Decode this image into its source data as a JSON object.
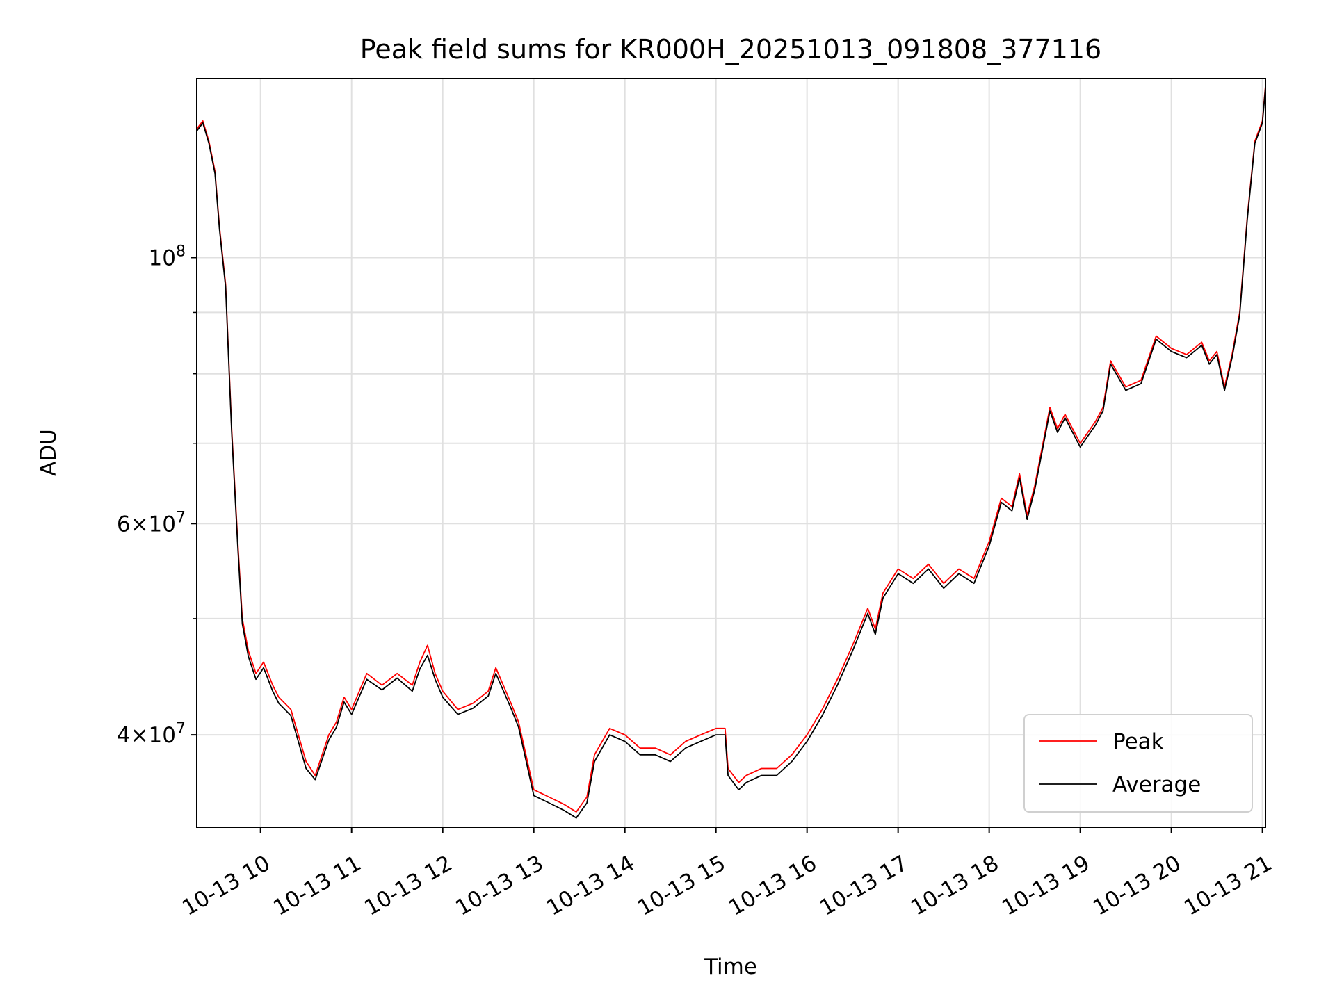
{
  "chart_data": {
    "type": "line",
    "title": "Peak field sums for KR000H_20251013_091808_377116",
    "xlabel": "Time",
    "ylabel": "ADU",
    "y_scale": "log",
    "ylim": [
      33500000,
      141000000
    ],
    "xlim": [
      "2025-10-13 09:18",
      "2025-10-13 21:02"
    ],
    "x_ticks": [
      {
        "time": "2025-10-13 10:00",
        "label": "10-13 10"
      },
      {
        "time": "2025-10-13 11:00",
        "label": "10-13 11"
      },
      {
        "time": "2025-10-13 12:00",
        "label": "10-13 12"
      },
      {
        "time": "2025-10-13 13:00",
        "label": "10-13 13"
      },
      {
        "time": "2025-10-13 14:00",
        "label": "10-13 14"
      },
      {
        "time": "2025-10-13 15:00",
        "label": "10-13 15"
      },
      {
        "time": "2025-10-13 16:00",
        "label": "10-13 16"
      },
      {
        "time": "2025-10-13 17:00",
        "label": "10-13 17"
      },
      {
        "time": "2025-10-13 18:00",
        "label": "10-13 18"
      },
      {
        "time": "2025-10-13 19:00",
        "label": "10-13 19"
      },
      {
        "time": "2025-10-13 20:00",
        "label": "10-13 20"
      },
      {
        "time": "2025-10-13 21:00",
        "label": "10-13 21"
      }
    ],
    "y_major_ticks": [
      {
        "value": 40000000,
        "label_base": "4×10",
        "label_exp": "7"
      },
      {
        "value": 60000000,
        "label_base": "6×10",
        "label_exp": "7"
      },
      {
        "value": 100000000,
        "label_base": "10",
        "label_exp": "8"
      }
    ],
    "y_minor_ticks": [
      50000000,
      70000000,
      80000000,
      90000000
    ],
    "grid": true,
    "legend_position": "lower-right",
    "series": [
      {
        "name": "Peak",
        "color": "#ff0000",
        "x": [
          "2025-10-13 09:18",
          "2025-10-13 09:22",
          "2025-10-13 09:26",
          "2025-10-13 09:30",
          "2025-10-13 09:33",
          "2025-10-13 09:37",
          "2025-10-13 09:41",
          "2025-10-13 09:45",
          "2025-10-13 09:48",
          "2025-10-13 09:52",
          "2025-10-13 09:57",
          "2025-10-13 10:02",
          "2025-10-13 10:08",
          "2025-10-13 10:12",
          "2025-10-13 10:20",
          "2025-10-13 10:30",
          "2025-10-13 10:36",
          "2025-10-13 10:45",
          "2025-10-13 10:50",
          "2025-10-13 10:55",
          "2025-10-13 11:00",
          "2025-10-13 11:10",
          "2025-10-13 11:20",
          "2025-10-13 11:30",
          "2025-10-13 11:40",
          "2025-10-13 11:45",
          "2025-10-13 11:50",
          "2025-10-13 11:55",
          "2025-10-13 12:00",
          "2025-10-13 12:10",
          "2025-10-13 12:20",
          "2025-10-13 12:30",
          "2025-10-13 12:35",
          "2025-10-13 12:45",
          "2025-10-13 12:50",
          "2025-10-13 13:00",
          "2025-10-13 13:10",
          "2025-10-13 13:20",
          "2025-10-13 13:28",
          "2025-10-13 13:35",
          "2025-10-13 13:40",
          "2025-10-13 13:50",
          "2025-10-13 14:00",
          "2025-10-13 14:10",
          "2025-10-13 14:20",
          "2025-10-13 14:30",
          "2025-10-13 14:40",
          "2025-10-13 14:50",
          "2025-10-13 15:00",
          "2025-10-13 15:06",
          "2025-10-13 15:08",
          "2025-10-13 15:15",
          "2025-10-13 15:20",
          "2025-10-13 15:30",
          "2025-10-13 15:40",
          "2025-10-13 15:50",
          "2025-10-13 16:00",
          "2025-10-13 16:10",
          "2025-10-13 16:20",
          "2025-10-13 16:30",
          "2025-10-13 16:40",
          "2025-10-13 16:45",
          "2025-10-13 16:50",
          "2025-10-13 17:00",
          "2025-10-13 17:10",
          "2025-10-13 17:20",
          "2025-10-13 17:30",
          "2025-10-13 17:40",
          "2025-10-13 17:50",
          "2025-10-13 18:00",
          "2025-10-13 18:08",
          "2025-10-13 18:15",
          "2025-10-13 18:20",
          "2025-10-13 18:25",
          "2025-10-13 18:30",
          "2025-10-13 18:40",
          "2025-10-13 18:45",
          "2025-10-13 18:50",
          "2025-10-13 19:00",
          "2025-10-13 19:10",
          "2025-10-13 19:15",
          "2025-10-13 19:20",
          "2025-10-13 19:30",
          "2025-10-13 19:40",
          "2025-10-13 19:50",
          "2025-10-13 20:00",
          "2025-10-13 20:10",
          "2025-10-13 20:20",
          "2025-10-13 20:25",
          "2025-10-13 20:30",
          "2025-10-13 20:35",
          "2025-10-13 20:40",
          "2025-10-13 20:45",
          "2025-10-13 20:50",
          "2025-10-13 20:55",
          "2025-10-13 21:00",
          "2025-10-13 21:02"
        ],
        "y": [
          128000000,
          130000000,
          125000000,
          118000000,
          106000000,
          95000000,
          72000000,
          58000000,
          50000000,
          47000000,
          45000000,
          46000000,
          44000000,
          43000000,
          42000000,
          38000000,
          37000000,
          40000000,
          41000000,
          43000000,
          42000000,
          45000000,
          44000000,
          45000000,
          44000000,
          46000000,
          47500000,
          45000000,
          43500000,
          42000000,
          42500000,
          43500000,
          45500000,
          42500000,
          41000000,
          36000000,
          35500000,
          35000000,
          34500000,
          35500000,
          38500000,
          40500000,
          40000000,
          39000000,
          39000000,
          38500000,
          39500000,
          40000000,
          40500000,
          40500000,
          37500000,
          36500000,
          37000000,
          37500000,
          37500000,
          38500000,
          40000000,
          42000000,
          44500000,
          47500000,
          51000000,
          49000000,
          52500000,
          55000000,
          54000000,
          55500000,
          53500000,
          55000000,
          54000000,
          58000000,
          63000000,
          62000000,
          66000000,
          61000000,
          64500000,
          75000000,
          72000000,
          74000000,
          70000000,
          73000000,
          75000000,
          82000000,
          78000000,
          79000000,
          86000000,
          84000000,
          83000000,
          85000000,
          82000000,
          83500000,
          78000000,
          83000000,
          90000000,
          108000000,
          125000000,
          130000000,
          139000000
        ]
      },
      {
        "name": "Average",
        "color": "#000000",
        "x": [
          "2025-10-13 09:18",
          "2025-10-13 09:22",
          "2025-10-13 09:26",
          "2025-10-13 09:30",
          "2025-10-13 09:33",
          "2025-10-13 09:37",
          "2025-10-13 09:41",
          "2025-10-13 09:45",
          "2025-10-13 09:48",
          "2025-10-13 09:52",
          "2025-10-13 09:57",
          "2025-10-13 10:02",
          "2025-10-13 10:08",
          "2025-10-13 10:12",
          "2025-10-13 10:20",
          "2025-10-13 10:30",
          "2025-10-13 10:36",
          "2025-10-13 10:45",
          "2025-10-13 10:50",
          "2025-10-13 10:55",
          "2025-10-13 11:00",
          "2025-10-13 11:10",
          "2025-10-13 11:20",
          "2025-10-13 11:30",
          "2025-10-13 11:40",
          "2025-10-13 11:45",
          "2025-10-13 11:50",
          "2025-10-13 11:55",
          "2025-10-13 12:00",
          "2025-10-13 12:10",
          "2025-10-13 12:20",
          "2025-10-13 12:30",
          "2025-10-13 12:35",
          "2025-10-13 12:45",
          "2025-10-13 12:50",
          "2025-10-13 13:00",
          "2025-10-13 13:10",
          "2025-10-13 13:20",
          "2025-10-13 13:28",
          "2025-10-13 13:35",
          "2025-10-13 13:40",
          "2025-10-13 13:50",
          "2025-10-13 14:00",
          "2025-10-13 14:10",
          "2025-10-13 14:20",
          "2025-10-13 14:30",
          "2025-10-13 14:40",
          "2025-10-13 14:50",
          "2025-10-13 15:00",
          "2025-10-13 15:06",
          "2025-10-13 15:08",
          "2025-10-13 15:15",
          "2025-10-13 15:20",
          "2025-10-13 15:30",
          "2025-10-13 15:40",
          "2025-10-13 15:50",
          "2025-10-13 16:00",
          "2025-10-13 16:10",
          "2025-10-13 16:20",
          "2025-10-13 16:30",
          "2025-10-13 16:40",
          "2025-10-13 16:45",
          "2025-10-13 16:50",
          "2025-10-13 17:00",
          "2025-10-13 17:10",
          "2025-10-13 17:20",
          "2025-10-13 17:30",
          "2025-10-13 17:40",
          "2025-10-13 17:50",
          "2025-10-13 18:00",
          "2025-10-13 18:08",
          "2025-10-13 18:15",
          "2025-10-13 18:20",
          "2025-10-13 18:25",
          "2025-10-13 18:30",
          "2025-10-13 18:40",
          "2025-10-13 18:45",
          "2025-10-13 18:50",
          "2025-10-13 19:00",
          "2025-10-13 19:10",
          "2025-10-13 19:15",
          "2025-10-13 19:20",
          "2025-10-13 19:30",
          "2025-10-13 19:40",
          "2025-10-13 19:50",
          "2025-10-13 20:00",
          "2025-10-13 20:10",
          "2025-10-13 20:20",
          "2025-10-13 20:25",
          "2025-10-13 20:30",
          "2025-10-13 20:35",
          "2025-10-13 20:40",
          "2025-10-13 20:45",
          "2025-10-13 20:50",
          "2025-10-13 20:55",
          "2025-10-13 21:00",
          "2025-10-13 21:02"
        ],
        "y": [
          127500000,
          129500000,
          124500000,
          117500000,
          105500000,
          94500000,
          71500000,
          57500000,
          49500000,
          46500000,
          44500000,
          45500000,
          43500000,
          42500000,
          41500000,
          37500000,
          36700000,
          39600000,
          40600000,
          42600000,
          41600000,
          44500000,
          43600000,
          44600000,
          43500000,
          45400000,
          46600000,
          44500000,
          43000000,
          41600000,
          42100000,
          43100000,
          45000000,
          42100000,
          40600000,
          35600000,
          35100000,
          34600000,
          34100000,
          35100000,
          38000000,
          40000000,
          39500000,
          38500000,
          38500000,
          38000000,
          39000000,
          39500000,
          40000000,
          40000000,
          37000000,
          36000000,
          36500000,
          37000000,
          37000000,
          38000000,
          39500000,
          41500000,
          44000000,
          47000000,
          50500000,
          48500000,
          52000000,
          54500000,
          53500000,
          55000000,
          53000000,
          54500000,
          53500000,
          57500000,
          62500000,
          61500000,
          65500000,
          60500000,
          64000000,
          74500000,
          71500000,
          73500000,
          69500000,
          72500000,
          74500000,
          81500000,
          77500000,
          78500000,
          85500000,
          83500000,
          82500000,
          84500000,
          81500000,
          83000000,
          77500000,
          82500000,
          89500000,
          107500000,
          124500000,
          129500000,
          138500000
        ]
      }
    ]
  }
}
